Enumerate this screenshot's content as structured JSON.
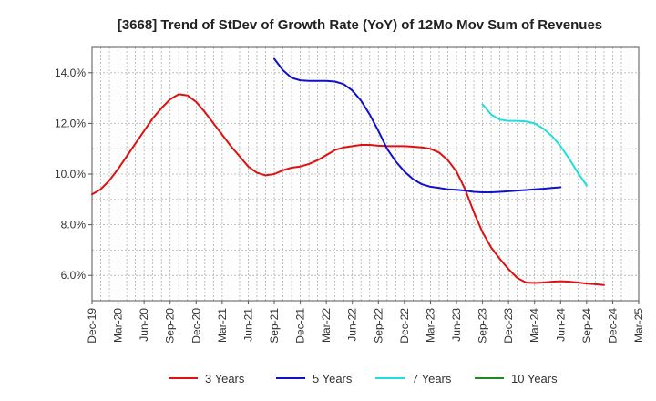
{
  "chart_data": {
    "type": "line",
    "title": "[3668]  Trend of StDev of Growth Rate (YoY) of 12Mo Mov Sum of Revenues",
    "xlabel": "",
    "ylabel": "",
    "ylim": [
      5.0,
      15.0
    ],
    "y_ticks": [
      6.0,
      8.0,
      10.0,
      12.0,
      14.0
    ],
    "y_tick_labels": [
      "6.0%",
      "8.0%",
      "10.0%",
      "12.0%",
      "14.0%"
    ],
    "x_tick_labels": [
      "Dec-19",
      "Mar-20",
      "Jun-20",
      "Sep-20",
      "Dec-20",
      "Mar-21",
      "Jun-21",
      "Sep-21",
      "Dec-21",
      "Mar-22",
      "Jun-22",
      "Sep-22",
      "Dec-22",
      "Mar-23",
      "Jun-23",
      "Sep-23",
      "Dec-23",
      "Mar-24",
      "Jun-24",
      "Sep-24",
      "Dec-24",
      "Mar-25"
    ],
    "grid": true,
    "legend_position": "bottom",
    "series": [
      {
        "name": "3 Years",
        "color": "#dd1111",
        "start_index": 0,
        "values": [
          9.2,
          9.4,
          9.75,
          10.2,
          10.7,
          11.2,
          11.7,
          12.2,
          12.6,
          12.95,
          13.15,
          13.1,
          12.85,
          12.45,
          12.0,
          11.55,
          11.1,
          10.7,
          10.3,
          10.05,
          9.95,
          10.0,
          10.15,
          10.25,
          10.3,
          10.4,
          10.55,
          10.75,
          10.95,
          11.05,
          11.1,
          11.15,
          11.15,
          11.12,
          11.1,
          11.1,
          11.1,
          11.08,
          11.05,
          11.0,
          10.85,
          10.55,
          10.1,
          9.4,
          8.5,
          7.7,
          7.1,
          6.65,
          6.25,
          5.9,
          5.72,
          5.7,
          5.72,
          5.75,
          5.77,
          5.75,
          5.72,
          5.68,
          5.65,
          5.62
        ]
      },
      {
        "name": "5 Years",
        "color": "#1111cc",
        "start_index": 21,
        "values": [
          14.55,
          14.1,
          13.8,
          13.7,
          13.68,
          13.68,
          13.68,
          13.65,
          13.55,
          13.3,
          12.9,
          12.35,
          11.7,
          11.0,
          10.5,
          10.1,
          9.8,
          9.6,
          9.5,
          9.45,
          9.4,
          9.38,
          9.35,
          9.3,
          9.28,
          9.28,
          9.3,
          9.32,
          9.35,
          9.37,
          9.4,
          9.42,
          9.45,
          9.48
        ]
      },
      {
        "name": "7 Years",
        "color": "#22dddd",
        "start_index": 45,
        "values": [
          12.75,
          12.35,
          12.15,
          12.1,
          12.1,
          12.08,
          12.0,
          11.8,
          11.5,
          11.1,
          10.6,
          10.05,
          9.55
        ]
      },
      {
        "name": "10 Years",
        "color": "#228822",
        "start_index": 0,
        "values": []
      }
    ]
  }
}
